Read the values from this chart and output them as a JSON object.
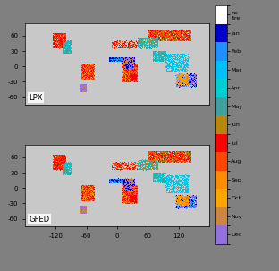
{
  "month_labels_top_to_bottom": [
    "Dec",
    "Nov",
    "Oct",
    "Sep",
    "Aug",
    "Jul",
    "Jun",
    "May",
    "Apr",
    "Mar",
    "Feb",
    "Jan",
    "no\nfire"
  ],
  "month_colors_jan_to_dec": [
    "#0000cd",
    "#1e90ff",
    "#00bfff",
    "#00ced1",
    "#40a0a0",
    "#b8860b",
    "#ff0000",
    "#ff4500",
    "#ff8c00",
    "#ffa500",
    "#cd853f",
    "#9370db"
  ],
  "no_fire_color": "#ffffff",
  "background_color": "#808080",
  "land_color": "#c8c8c8",
  "ocean_color": "#808080",
  "figsize": [
    3.12,
    3.03
  ],
  "dpi": 100,
  "label_top": "LPX",
  "label_bot": "GFED",
  "lon_ticks": [
    -120,
    -60,
    0,
    60,
    120
  ],
  "lat_ticks": [
    60,
    30,
    0,
    -30,
    -60
  ],
  "extent": [
    -180,
    180,
    -75,
    85
  ]
}
